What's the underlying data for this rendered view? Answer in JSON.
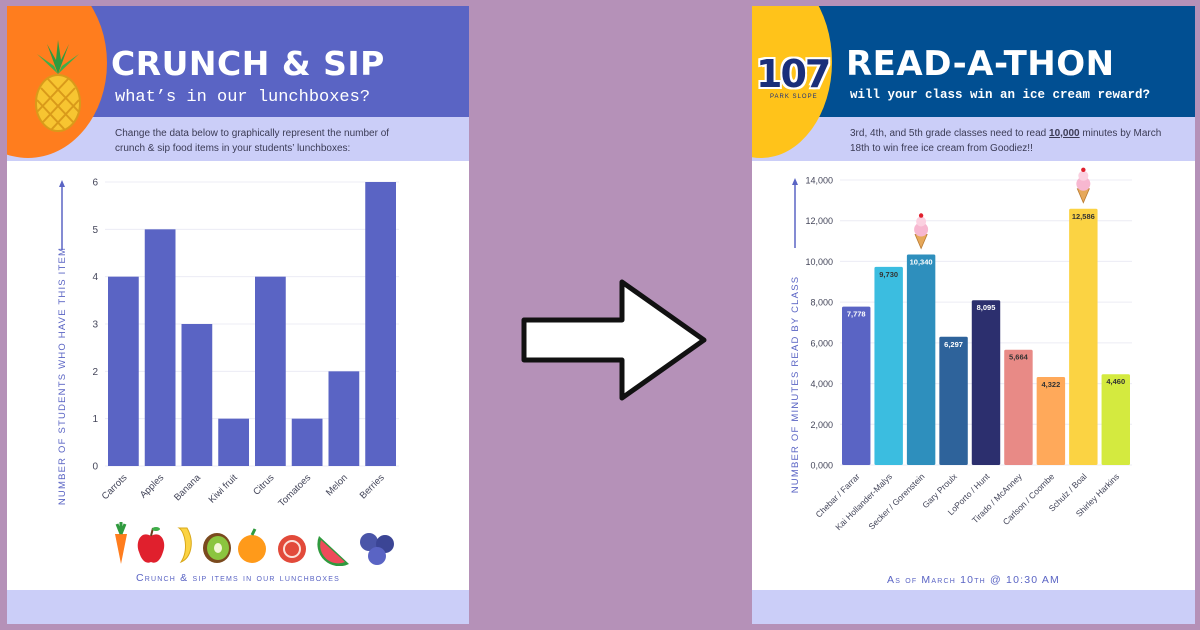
{
  "left_poster": {
    "title": "CRUNCH & SIP",
    "subtitle": "what’s in our lunchboxes?",
    "description": "Change the data below to graphically represent the number of crunch & sip food items in your students’ lunchboxes:",
    "footer_caption": "Crunch & sip items in our lunchboxes",
    "colors": {
      "header": "#5a64c4",
      "blob": "#ff7d1e",
      "bar": "#5a64c4"
    },
    "icons": [
      "pineapple-icon",
      "carrot-icon",
      "apple-icon",
      "banana-icon",
      "kiwi-icon",
      "orange-icon",
      "tomato-icon",
      "watermelon-icon",
      "blueberries-icon"
    ]
  },
  "right_poster": {
    "title": "READ-A-THON",
    "subtitle": "will your class win an ice cream reward?",
    "description_pre": "3rd, 4th, and 5th grade classes need to read ",
    "description_goal": "10,000",
    "description_post": " minutes by March 18th to win free ice cream from Goodiez!!",
    "logo_text": "107",
    "logo_tagline": "PARK SLOPE",
    "footer_caption": "As of March 10th @ 10:30 AM",
    "colors": {
      "header": "#014f92",
      "blob": "#ffc31a"
    },
    "icons": [
      "ice-cream-cone-icon"
    ]
  },
  "arrow_icon": "right-arrow-icon",
  "chart_data": [
    {
      "type": "bar",
      "title": "",
      "xlabel": "",
      "ylabel": "Number of students who have this item",
      "ylim": [
        0,
        6
      ],
      "yticks": [
        "0",
        "1",
        "2",
        "3",
        "4",
        "5",
        "6"
      ],
      "grid": true,
      "categories": [
        "Carrots",
        "Apples",
        "Banana",
        "Kiwi fruit",
        "Citrus",
        "Tomatoes",
        "Melon",
        "Berries"
      ],
      "values": [
        4,
        5,
        3,
        1,
        4,
        1,
        2,
        6
      ]
    },
    {
      "type": "bar",
      "title": "",
      "xlabel": "",
      "ylabel": "Number of minutes read by class",
      "ylim": [
        0,
        14000
      ],
      "yticks": [
        "0,000",
        "2,000",
        "4,000",
        "6,000",
        "8,000",
        "10,000",
        "12,000",
        "14,000"
      ],
      "grid": true,
      "categories": [
        "Chebar / Farrar",
        "Kai Hollander-Malys",
        "Secker / Gorenstein",
        "Gary Proulx",
        "LoPorto / Hunt",
        "Tirado / McAnney",
        "Carlson / Coombe",
        "Schulz / Boal",
        "Shirley Harkins"
      ],
      "values": [
        7778,
        9730,
        10340,
        6297,
        8095,
        5664,
        4322,
        12586,
        4460
      ],
      "data_labels": [
        "7,778",
        "9,730",
        "10,340",
        "6,297",
        "8,095",
        "5,664",
        "4,322",
        "12,586",
        "4,460"
      ],
      "bar_colors": [
        "#5a64c4",
        "#3bbde0",
        "#2e8fbd",
        "#2e639b",
        "#2c2f6e",
        "#e88a86",
        "#ffa95a",
        "#fbd343",
        "#d4ea3f"
      ],
      "reward_markers": [
        "Secker / Gorenstein",
        "Schulz / Boal"
      ]
    }
  ]
}
